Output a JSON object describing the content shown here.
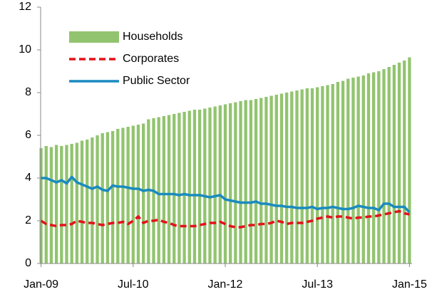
{
  "chart_data": {
    "type": "combo",
    "categories": [
      "Jan-09",
      null,
      null,
      null,
      null,
      null,
      null,
      null,
      null,
      null,
      null,
      null,
      null,
      null,
      null,
      null,
      null,
      null,
      "Jul-10",
      null,
      null,
      null,
      null,
      null,
      null,
      null,
      null,
      null,
      null,
      null,
      null,
      null,
      null,
      null,
      null,
      null,
      "Jan-12",
      null,
      null,
      null,
      null,
      null,
      null,
      null,
      null,
      null,
      null,
      null,
      null,
      null,
      null,
      null,
      null,
      null,
      "Jul-13",
      null,
      null,
      null,
      null,
      null,
      null,
      null,
      null,
      null,
      null,
      null,
      null,
      null,
      null,
      null,
      null,
      null,
      "Jan-15"
    ],
    "series": [
      {
        "name": "Households",
        "type": "bar",
        "color": "#92c46f",
        "values": [
          5.4,
          5.5,
          5.45,
          5.55,
          5.5,
          5.55,
          5.6,
          5.65,
          5.75,
          5.8,
          5.9,
          6.0,
          6.1,
          6.15,
          6.2,
          6.3,
          6.35,
          6.4,
          6.45,
          6.5,
          6.55,
          6.75,
          6.8,
          6.85,
          6.9,
          6.95,
          7.0,
          7.05,
          7.1,
          7.15,
          7.2,
          7.2,
          7.25,
          7.3,
          7.35,
          7.4,
          7.45,
          7.5,
          7.55,
          7.6,
          7.65,
          7.65,
          7.7,
          7.75,
          7.8,
          7.85,
          7.9,
          7.95,
          8.0,
          8.05,
          8.1,
          8.15,
          8.2,
          8.2,
          8.25,
          8.3,
          8.35,
          8.4,
          8.5,
          8.55,
          8.65,
          8.7,
          8.75,
          8.8,
          8.9,
          8.95,
          9.0,
          9.1,
          9.2,
          9.3,
          9.4,
          9.5,
          9.65
        ]
      },
      {
        "name": "Corporates",
        "type": "line",
        "dashed": true,
        "color": "#e3121b",
        "values": [
          2.0,
          1.85,
          1.8,
          1.75,
          1.8,
          1.8,
          1.85,
          2.0,
          1.95,
          1.9,
          1.9,
          1.85,
          1.8,
          1.85,
          1.9,
          1.9,
          1.95,
          1.85,
          2.0,
          2.2,
          1.9,
          2.0,
          2.0,
          2.05,
          1.95,
          1.9,
          1.8,
          1.75,
          1.75,
          1.75,
          1.75,
          1.8,
          1.85,
          1.9,
          1.9,
          1.95,
          1.85,
          1.75,
          1.7,
          1.7,
          1.75,
          1.8,
          1.8,
          1.85,
          1.85,
          1.9,
          2.0,
          1.95,
          1.85,
          1.9,
          1.9,
          1.9,
          1.95,
          2.0,
          2.1,
          2.15,
          2.2,
          2.15,
          2.2,
          2.2,
          2.15,
          2.1,
          2.15,
          2.15,
          2.2,
          2.2,
          2.25,
          2.3,
          2.35,
          2.4,
          2.45,
          2.35,
          2.3
        ]
      },
      {
        "name": "Public Sector",
        "type": "line",
        "dashed": false,
        "color": "#1a8bbf",
        "values": [
          4.0,
          4.0,
          3.9,
          3.8,
          3.9,
          3.75,
          4.05,
          3.8,
          3.7,
          3.6,
          3.5,
          3.6,
          3.45,
          3.4,
          3.65,
          3.6,
          3.6,
          3.55,
          3.5,
          3.5,
          3.4,
          3.45,
          3.4,
          3.25,
          3.25,
          3.25,
          3.25,
          3.2,
          3.25,
          3.2,
          3.2,
          3.2,
          3.15,
          3.1,
          3.15,
          3.2,
          3.0,
          2.95,
          2.9,
          2.85,
          2.85,
          2.85,
          2.9,
          2.8,
          2.8,
          2.75,
          2.7,
          2.7,
          2.65,
          2.65,
          2.6,
          2.6,
          2.6,
          2.65,
          2.55,
          2.6,
          2.6,
          2.65,
          2.6,
          2.55,
          2.55,
          2.6,
          2.7,
          2.65,
          2.6,
          2.6,
          2.5,
          2.8,
          2.8,
          2.65,
          2.65,
          2.65,
          2.4
        ]
      }
    ],
    "ylim": [
      0,
      12
    ],
    "yticks": [
      0,
      2,
      4,
      6,
      8,
      10,
      12
    ],
    "grid": false,
    "legend": "upper left"
  }
}
